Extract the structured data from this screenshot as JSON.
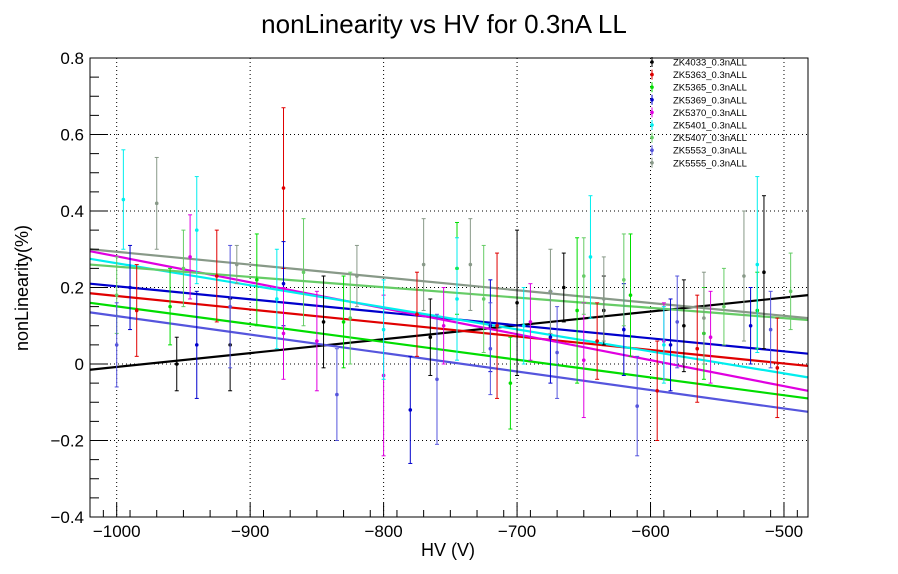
{
  "chart_data": {
    "type": "scatter",
    "title": "nonLinearity vs HV for 0.3nA LL",
    "xlabel": "HV (V)",
    "ylabel": "nonLinearity(%)",
    "xlim": [
      -1020,
      -482
    ],
    "ylim": [
      -0.4,
      0.8
    ],
    "x_ticks": [
      -1000,
      -900,
      -800,
      -700,
      -600,
      -500
    ],
    "x_tick_labels": [
      "−1000",
      "−900",
      "−800",
      "−700",
      "−600",
      "−500"
    ],
    "y_ticks": [
      -0.4,
      -0.2,
      0,
      0.2,
      0.4,
      0.6,
      0.8
    ],
    "y_tick_labels": [
      "−0.4",
      "−0.2",
      "0",
      "0.2",
      "0.4",
      "0.6",
      "0.8"
    ],
    "grid": true,
    "legend_position": "top-right",
    "series": [
      {
        "name": "ZK4033_0.3nALL",
        "color": "#000000",
        "fit": [
          [
            -1020,
            -0.015
          ],
          [
            -482,
            0.18
          ]
        ],
        "points": [
          {
            "x": -955,
            "y": 0.0,
            "err": 0.07
          },
          {
            "x": -915,
            "y": 0.05,
            "err": 0.12
          },
          {
            "x": -845,
            "y": 0.11,
            "err": 0.12
          },
          {
            "x": -765,
            "y": 0.07,
            "err": 0.1
          },
          {
            "x": -700,
            "y": 0.16,
            "err": 0.19
          },
          {
            "x": -665,
            "y": 0.2,
            "err": 0.09
          },
          {
            "x": -635,
            "y": 0.14,
            "err": 0.09
          },
          {
            "x": -575,
            "y": 0.1,
            "err": 0.12
          },
          {
            "x": -515,
            "y": 0.24,
            "err": 0.2
          }
        ]
      },
      {
        "name": "ZK5363_0.3nALL",
        "color": "#e00000",
        "fit": [
          [
            -1020,
            0.185
          ],
          [
            -482,
            -0.005
          ]
        ],
        "points": [
          {
            "x": -985,
            "y": 0.14,
            "err": 0.12
          },
          {
            "x": -925,
            "y": 0.23,
            "err": 0.12
          },
          {
            "x": -875,
            "y": 0.46,
            "err": 0.21
          },
          {
            "x": -775,
            "y": 0.13,
            "err": 0.11
          },
          {
            "x": -715,
            "y": 0.1,
            "err": 0.19
          },
          {
            "x": -640,
            "y": 0.06,
            "err": 0.1
          },
          {
            "x": -595,
            "y": -0.07,
            "err": 0.13
          },
          {
            "x": -565,
            "y": 0.04,
            "err": 0.14
          },
          {
            "x": -505,
            "y": -0.01,
            "err": 0.13
          }
        ]
      },
      {
        "name": "ZK5365_0.3nALL",
        "color": "#00dd00",
        "fit": [
          [
            -1020,
            0.16
          ],
          [
            -482,
            -0.09
          ]
        ],
        "points": [
          {
            "x": -960,
            "y": 0.15,
            "err": 0.1
          },
          {
            "x": -895,
            "y": 0.22,
            "err": 0.12
          },
          {
            "x": -830,
            "y": 0.11,
            "err": 0.12
          },
          {
            "x": -745,
            "y": 0.25,
            "err": 0.12
          },
          {
            "x": -705,
            "y": -0.05,
            "err": 0.12
          },
          {
            "x": -655,
            "y": 0.14,
            "err": 0.19
          },
          {
            "x": -615,
            "y": 0.18,
            "err": 0.16
          },
          {
            "x": -560,
            "y": 0.08,
            "err": 0.12
          },
          {
            "x": -520,
            "y": 0.14,
            "err": 0.1
          }
        ]
      },
      {
        "name": "ZK5369_0.3nALL",
        "color": "#0000cc",
        "fit": [
          [
            -1020,
            0.21
          ],
          [
            -482,
            0.027
          ]
        ],
        "points": [
          {
            "x": -990,
            "y": 0.2,
            "err": 0.11
          },
          {
            "x": -940,
            "y": 0.05,
            "err": 0.14
          },
          {
            "x": -875,
            "y": 0.21,
            "err": 0.11
          },
          {
            "x": -780,
            "y": -0.12,
            "err": 0.14
          },
          {
            "x": -720,
            "y": 0.1,
            "err": 0.12
          },
          {
            "x": -675,
            "y": 0.07,
            "err": 0.12
          },
          {
            "x": -620,
            "y": 0.09,
            "err": 0.12
          },
          {
            "x": -585,
            "y": 0.05,
            "err": 0.12
          },
          {
            "x": -525,
            "y": 0.1,
            "err": 0.1
          }
        ]
      },
      {
        "name": "ZK5370_0.3nALL",
        "color": "#e000e0",
        "fit": [
          [
            -1020,
            0.295
          ],
          [
            -482,
            -0.07
          ]
        ],
        "points": [
          {
            "x": -945,
            "y": 0.28,
            "err": 0.11
          },
          {
            "x": -875,
            "y": 0.08,
            "err": 0.12
          },
          {
            "x": -850,
            "y": 0.06,
            "err": 0.13
          },
          {
            "x": -800,
            "y": -0.03,
            "err": 0.21
          },
          {
            "x": -755,
            "y": 0.1,
            "err": 0.1
          },
          {
            "x": -690,
            "y": 0.11,
            "err": 0.1
          },
          {
            "x": -650,
            "y": 0.01,
            "err": 0.15
          },
          {
            "x": -590,
            "y": 0.06,
            "err": 0.1
          },
          {
            "x": -555,
            "y": 0.07,
            "err": 0.12
          }
        ]
      },
      {
        "name": "ZK5401_0.3nALL",
        "color": "#00eeee",
        "fit": [
          [
            -1020,
            0.275
          ],
          [
            -482,
            -0.035
          ]
        ],
        "points": [
          {
            "x": -995,
            "y": 0.43,
            "err": 0.13
          },
          {
            "x": -940,
            "y": 0.35,
            "err": 0.14
          },
          {
            "x": -880,
            "y": 0.17,
            "err": 0.13
          },
          {
            "x": -800,
            "y": 0.09,
            "err": 0.13
          },
          {
            "x": -745,
            "y": 0.17,
            "err": 0.16
          },
          {
            "x": -695,
            "y": 0.1,
            "err": 0.1
          },
          {
            "x": -645,
            "y": 0.28,
            "err": 0.16
          },
          {
            "x": -590,
            "y": 0.05,
            "err": 0.1
          },
          {
            "x": -520,
            "y": 0.26,
            "err": 0.23
          }
        ]
      },
      {
        "name": "ZK5407_0.3nALL",
        "color": "#66cc66",
        "fit": [
          [
            -1020,
            0.26
          ],
          [
            -482,
            0.115
          ]
        ],
        "points": [
          {
            "x": -1000,
            "y": 0.18,
            "err": 0.1
          },
          {
            "x": -950,
            "y": 0.25,
            "err": 0.1
          },
          {
            "x": -860,
            "y": 0.24,
            "err": 0.14
          },
          {
            "x": -825,
            "y": 0.12,
            "err": 0.12
          },
          {
            "x": -725,
            "y": 0.17,
            "err": 0.14
          },
          {
            "x": -650,
            "y": 0.23,
            "err": 0.1
          },
          {
            "x": -620,
            "y": 0.22,
            "err": 0.12
          },
          {
            "x": -545,
            "y": 0.15,
            "err": 0.1
          },
          {
            "x": -495,
            "y": 0.19,
            "err": 0.1
          }
        ]
      },
      {
        "name": "ZK5553_0.3nALL",
        "color": "#5555dd",
        "fit": [
          [
            -1020,
            0.135
          ],
          [
            -482,
            -0.125
          ]
        ],
        "points": [
          {
            "x": -1000,
            "y": 0.05,
            "err": 0.11
          },
          {
            "x": -915,
            "y": 0.15,
            "err": 0.16
          },
          {
            "x": -835,
            "y": -0.08,
            "err": 0.12
          },
          {
            "x": -760,
            "y": -0.04,
            "err": 0.17
          },
          {
            "x": -720,
            "y": 0.04,
            "err": 0.12
          },
          {
            "x": -670,
            "y": 0.03,
            "err": 0.12
          },
          {
            "x": -610,
            "y": -0.11,
            "err": 0.13
          },
          {
            "x": -580,
            "y": 0.11,
            "err": 0.12
          },
          {
            "x": -510,
            "y": 0.09,
            "err": 0.1
          }
        ]
      },
      {
        "name": "ZK5555_0.3nALL",
        "color": "#889988",
        "fit": [
          [
            -1020,
            0.3
          ],
          [
            -482,
            0.12
          ]
        ],
        "points": [
          {
            "x": -970,
            "y": 0.42,
            "err": 0.12
          },
          {
            "x": -910,
            "y": 0.26,
            "err": 0.05
          },
          {
            "x": -820,
            "y": 0.23,
            "err": 0.08
          },
          {
            "x": -770,
            "y": 0.26,
            "err": 0.12
          },
          {
            "x": -735,
            "y": 0.26,
            "err": 0.12
          },
          {
            "x": -675,
            "y": 0.19,
            "err": 0.11
          },
          {
            "x": -635,
            "y": 0.17,
            "err": 0.11
          },
          {
            "x": -560,
            "y": 0.12,
            "err": 0.12
          },
          {
            "x": -530,
            "y": 0.23,
            "err": 0.17
          }
        ]
      }
    ]
  }
}
